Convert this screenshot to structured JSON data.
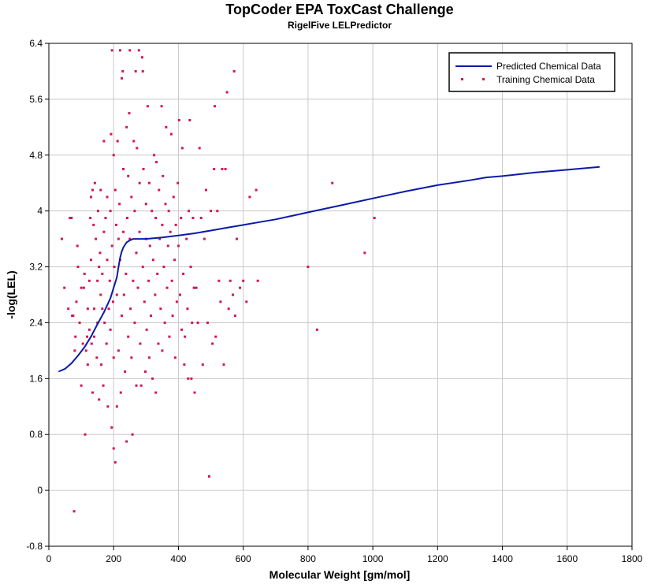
{
  "chart_data": {
    "type": "scatter",
    "title": "TopCoder EPA ToxCast Challenge",
    "subtitle": "RigelFive LELPredictor",
    "xlabel": "Molecular Weight [gm/mol]",
    "ylabel": "-log(LEL)",
    "xlim": [
      0,
      1800
    ],
    "ylim": [
      -0.8,
      6.4
    ],
    "x_ticks": [
      "0",
      "200",
      "400",
      "600",
      "800",
      "1000",
      "1200",
      "1400",
      "1600",
      "1800"
    ],
    "y_ticks": [
      "-0.8",
      "0",
      "0.8",
      "1.6",
      "2.4",
      "3.2",
      "4",
      "4.8",
      "5.6",
      "6.4"
    ],
    "grid": true,
    "legend_position": "top-right",
    "colors": {
      "predicted": "#0a1aa8",
      "training": "#d4145a"
    },
    "series": [
      {
        "name": "Predicted Chemical Data",
        "kind": "line",
        "x": [
          30,
          50,
          70,
          90,
          110,
          130,
          150,
          170,
          190,
          200,
          210,
          215,
          220,
          225,
          230,
          240,
          250,
          260,
          280,
          300,
          350,
          400,
          450,
          500,
          550,
          600,
          650,
          700,
          750,
          800,
          900,
          1000,
          1100,
          1200,
          1300,
          1350,
          1400,
          1500,
          1600,
          1700
        ],
        "y": [
          1.7,
          1.74,
          1.82,
          1.93,
          2.05,
          2.2,
          2.38,
          2.55,
          2.75,
          2.9,
          3.05,
          3.2,
          3.33,
          3.42,
          3.48,
          3.55,
          3.58,
          3.6,
          3.6,
          3.6,
          3.62,
          3.65,
          3.68,
          3.72,
          3.76,
          3.8,
          3.84,
          3.88,
          3.93,
          3.98,
          4.08,
          4.18,
          4.28,
          4.37,
          4.44,
          4.48,
          4.5,
          4.55,
          4.59,
          4.63
        ]
      },
      {
        "name": "Training Chemical Data",
        "kind": "scatter",
        "points": [
          [
            40,
            3.6
          ],
          [
            48,
            2.9
          ],
          [
            60,
            2.6
          ],
          [
            65,
            3.9
          ],
          [
            70,
            3.9
          ],
          [
            72,
            2.5
          ],
          [
            75,
            2.5
          ],
          [
            78,
            -0.3
          ],
          [
            80,
            2.0
          ],
          [
            82,
            2.2
          ],
          [
            85,
            2.7
          ],
          [
            88,
            3.5
          ],
          [
            90,
            3.2
          ],
          [
            95,
            2.4
          ],
          [
            100,
            2.9
          ],
          [
            100,
            1.5
          ],
          [
            105,
            2.1
          ],
          [
            108,
            2.9
          ],
          [
            110,
            3.1
          ],
          [
            112,
            0.8
          ],
          [
            115,
            2.0
          ],
          [
            118,
            2.2
          ],
          [
            120,
            2.6
          ],
          [
            120,
            1.8
          ],
          [
            125,
            3.0
          ],
          [
            125,
            2.3
          ],
          [
            128,
            3.9
          ],
          [
            130,
            3.3
          ],
          [
            130,
            4.2
          ],
          [
            132,
            2.1
          ],
          [
            135,
            1.4
          ],
          [
            135,
            4.3
          ],
          [
            138,
            3.8
          ],
          [
            140,
            2.6
          ],
          [
            140,
            2.2
          ],
          [
            142,
            4.4
          ],
          [
            145,
            3.6
          ],
          [
            148,
            1.9
          ],
          [
            150,
            3.0
          ],
          [
            150,
            2.4
          ],
          [
            152,
            4.0
          ],
          [
            155,
            1.3
          ],
          [
            155,
            3.2
          ],
          [
            158,
            3.4
          ],
          [
            160,
            2.8
          ],
          [
            160,
            4.3
          ],
          [
            162,
            1.8
          ],
          [
            165,
            2.6
          ],
          [
            165,
            3.1
          ],
          [
            168,
            1.5
          ],
          [
            170,
            5.0
          ],
          [
            170,
            3.7
          ],
          [
            172,
            2.4
          ],
          [
            175,
            3.9
          ],
          [
            178,
            2.1
          ],
          [
            180,
            4.2
          ],
          [
            180,
            3.3
          ],
          [
            182,
            1.2
          ],
          [
            185,
            2.6
          ],
          [
            188,
            3.0
          ],
          [
            190,
            4.0
          ],
          [
            190,
            2.3
          ],
          [
            192,
            5.1
          ],
          [
            194,
            0.9
          ],
          [
            195,
            6.3
          ],
          [
            195,
            3.5
          ],
          [
            198,
            2.7
          ],
          [
            200,
            4.8
          ],
          [
            200,
            0.6
          ],
          [
            200,
            1.9
          ],
          [
            202,
            3.2
          ],
          [
            205,
            0.4
          ],
          [
            205,
            4.3
          ],
          [
            208,
            3.8
          ],
          [
            210,
            2.8
          ],
          [
            210,
            1.2
          ],
          [
            212,
            5.0
          ],
          [
            215,
            3.6
          ],
          [
            215,
            2.0
          ],
          [
            218,
            4.1
          ],
          [
            220,
            6.3
          ],
          [
            220,
            3.3
          ],
          [
            222,
            1.4
          ],
          [
            225,
            5.9
          ],
          [
            225,
            2.5
          ],
          [
            228,
            6.0
          ],
          [
            230,
            3.7
          ],
          [
            230,
            4.6
          ],
          [
            232,
            2.8
          ],
          [
            235,
            1.7
          ],
          [
            238,
            3.1
          ],
          [
            240,
            5.2
          ],
          [
            240,
            0.7
          ],
          [
            242,
            3.9
          ],
          [
            245,
            4.5
          ],
          [
            245,
            2.2
          ],
          [
            248,
            5.4
          ],
          [
            250,
            6.3
          ],
          [
            250,
            3.6
          ],
          [
            252,
            2.6
          ],
          [
            255,
            4.2
          ],
          [
            255,
            1.9
          ],
          [
            258,
            0.8
          ],
          [
            260,
            3.0
          ],
          [
            262,
            5.0
          ],
          [
            265,
            4.0
          ],
          [
            265,
            2.4
          ],
          [
            268,
            6.0
          ],
          [
            270,
            3.4
          ],
          [
            270,
            1.5
          ],
          [
            272,
            4.9
          ],
          [
            275,
            2.9
          ],
          [
            278,
            6.3
          ],
          [
            280,
            3.7
          ],
          [
            280,
            4.4
          ],
          [
            282,
            2.1
          ],
          [
            285,
            1.5
          ],
          [
            288,
            6.2
          ],
          [
            290,
            3.2
          ],
          [
            290,
            6.0
          ],
          [
            292,
            4.6
          ],
          [
            295,
            2.7
          ],
          [
            298,
            1.7
          ],
          [
            300,
            3.6
          ],
          [
            300,
            4.1
          ],
          [
            302,
            2.3
          ],
          [
            305,
            5.5
          ],
          [
            308,
            3.0
          ],
          [
            310,
            4.4
          ],
          [
            310,
            1.9
          ],
          [
            312,
            3.5
          ],
          [
            315,
            2.5
          ],
          [
            318,
            4.0
          ],
          [
            320,
            1.6
          ],
          [
            322,
            3.3
          ],
          [
            325,
            4.8
          ],
          [
            328,
            2.8
          ],
          [
            330,
            3.9
          ],
          [
            330,
            1.4
          ],
          [
            332,
            4.7
          ],
          [
            335,
            3.1
          ],
          [
            338,
            2.1
          ],
          [
            340,
            4.3
          ],
          [
            342,
            3.6
          ],
          [
            345,
            2.6
          ],
          [
            348,
            5.5
          ],
          [
            350,
            3.8
          ],
          [
            350,
            2.0
          ],
          [
            352,
            4.5
          ],
          [
            355,
            3.2
          ],
          [
            358,
            2.4
          ],
          [
            360,
            4.1
          ],
          [
            362,
            5.2
          ],
          [
            365,
            2.9
          ],
          [
            368,
            3.5
          ],
          [
            370,
            4.0
          ],
          [
            372,
            2.2
          ],
          [
            375,
            3.7
          ],
          [
            378,
            5.1
          ],
          [
            380,
            3.0
          ],
          [
            382,
            2.5
          ],
          [
            385,
            4.2
          ],
          [
            388,
            3.3
          ],
          [
            390,
            1.9
          ],
          [
            392,
            3.8
          ],
          [
            395,
            2.7
          ],
          [
            398,
            4.4
          ],
          [
            400,
            3.5
          ],
          [
            402,
            5.3
          ],
          [
            405,
            2.8
          ],
          [
            408,
            3.9
          ],
          [
            410,
            2.3
          ],
          [
            412,
            4.9
          ],
          [
            415,
            3.1
          ],
          [
            418,
            1.8
          ],
          [
            420,
            2.2
          ],
          [
            425,
            3.6
          ],
          [
            428,
            2.6
          ],
          [
            430,
            1.6
          ],
          [
            432,
            4.0
          ],
          [
            435,
            5.3
          ],
          [
            438,
            3.2
          ],
          [
            440,
            1.6
          ],
          [
            442,
            2.4
          ],
          [
            445,
            3.9
          ],
          [
            448,
            2.9
          ],
          [
            450,
            1.4
          ],
          [
            455,
            2.9
          ],
          [
            460,
            2.4
          ],
          [
            465,
            4.9
          ],
          [
            470,
            3.9
          ],
          [
            475,
            1.8
          ],
          [
            480,
            3.6
          ],
          [
            485,
            4.3
          ],
          [
            490,
            2.4
          ],
          [
            495,
            0.2
          ],
          [
            500,
            4.0
          ],
          [
            505,
            2.1
          ],
          [
            510,
            4.6
          ],
          [
            512,
            5.5
          ],
          [
            515,
            2.2
          ],
          [
            520,
            4.0
          ],
          [
            525,
            3.0
          ],
          [
            530,
            2.7
          ],
          [
            535,
            4.6
          ],
          [
            540,
            1.8
          ],
          [
            545,
            4.6
          ],
          [
            550,
            5.7
          ],
          [
            555,
            2.6
          ],
          [
            560,
            3.0
          ],
          [
            568,
            2.8
          ],
          [
            572,
            6.0
          ],
          [
            575,
            2.5
          ],
          [
            580,
            3.6
          ],
          [
            590,
            2.9
          ],
          [
            600,
            3.0
          ],
          [
            610,
            2.7
          ],
          [
            620,
            4.2
          ],
          [
            640,
            4.3
          ],
          [
            645,
            3.0
          ],
          [
            800,
            3.2
          ],
          [
            828,
            2.3
          ],
          [
            875,
            4.4
          ],
          [
            975,
            3.4
          ],
          [
            1005,
            3.9
          ]
        ]
      }
    ]
  }
}
